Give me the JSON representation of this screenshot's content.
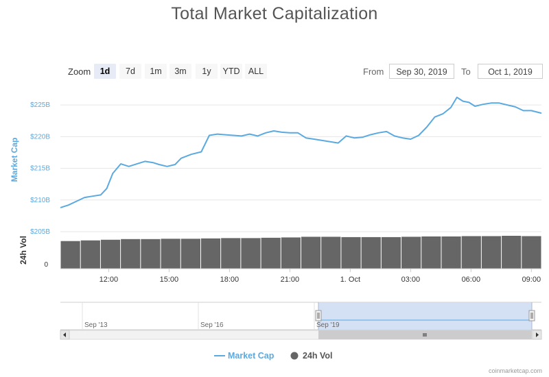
{
  "chart_data": {
    "type": "line",
    "title": "Total Market Capitalization",
    "zoom": {
      "label": "Zoom",
      "buttons": [
        "1d",
        "7d",
        "1m",
        "3m",
        "1y",
        "YTD",
        "ALL"
      ],
      "active": "1d"
    },
    "range": {
      "from_label": "From",
      "from_value": "Sep 30, 2019",
      "to_label": "To",
      "to_value": "Oct 1, 2019"
    },
    "axes": {
      "y_title": "Market Cap",
      "y_unit": "billion USD",
      "y_ticks": [
        "$205B",
        "$210B",
        "$215B",
        "$220B",
        "$225B"
      ],
      "y_tick_values": [
        205,
        210,
        215,
        220,
        225
      ],
      "ylim": [
        205,
        227.5
      ],
      "vol_title": "24h Vol",
      "vol_ticks": [
        "0"
      ],
      "x_tick_labels": [
        "12:00",
        "15:00",
        "18:00",
        "21:00",
        "1. Oct",
        "03:00",
        "06:00",
        "09:00"
      ],
      "x_tick_hours": [
        12,
        15,
        18,
        21,
        24,
        27,
        30,
        33
      ],
      "xlim_hours": [
        9.6,
        33.5
      ],
      "grid": true
    },
    "series": [
      {
        "name": "Market Cap",
        "color": "#5aa9e0",
        "x_hours": [
          9.6,
          10.0,
          10.4,
          10.8,
          11.2,
          11.6,
          11.9,
          12.2,
          12.6,
          13.0,
          13.4,
          13.8,
          14.2,
          14.5,
          14.9,
          15.3,
          15.6,
          16.1,
          16.6,
          17.0,
          17.4,
          17.8,
          18.2,
          18.6,
          19.0,
          19.4,
          19.8,
          20.2,
          20.6,
          21.0,
          21.4,
          21.8,
          22.2,
          22.6,
          23.0,
          23.4,
          23.8,
          24.2,
          24.6,
          25.0,
          25.4,
          25.8,
          26.2,
          26.6,
          27.0,
          27.4,
          27.8,
          28.2,
          28.6,
          29.0,
          29.3,
          29.6,
          29.9,
          30.2,
          30.6,
          31.0,
          31.4,
          31.8,
          32.2,
          32.6,
          33.0,
          33.5
        ],
        "values": [
          208.8,
          209.2,
          209.8,
          210.4,
          210.6,
          210.8,
          211.8,
          214.2,
          215.7,
          215.3,
          215.7,
          216.1,
          215.9,
          215.6,
          215.3,
          215.6,
          216.6,
          217.2,
          217.6,
          220.2,
          220.4,
          220.3,
          220.2,
          220.1,
          220.4,
          220.1,
          220.6,
          220.9,
          220.7,
          220.6,
          220.6,
          219.8,
          219.6,
          219.4,
          219.2,
          219.0,
          220.1,
          219.8,
          219.9,
          220.3,
          220.6,
          220.8,
          220.1,
          219.8,
          219.6,
          220.2,
          221.5,
          223.1,
          223.6,
          224.6,
          226.2,
          225.6,
          225.4,
          224.8,
          225.1,
          225.3,
          225.3,
          225.0,
          224.7,
          224.1,
          224.1,
          223.7
        ]
      },
      {
        "name": "24h Vol",
        "type": "column",
        "color": "#666666",
        "relative_values": [
          0.84,
          0.86,
          0.88,
          0.9,
          0.9,
          0.91,
          0.91,
          0.92,
          0.93,
          0.93,
          0.94,
          0.95,
          0.97,
          0.97,
          0.96,
          0.96,
          0.96,
          0.97,
          0.98,
          0.98,
          0.99,
          0.99,
          1.0,
          0.99
        ]
      }
    ],
    "navigator": {
      "labels": [
        "Sep '13",
        "Sep '16",
        "Sep '19"
      ]
    },
    "legend": [
      "Market Cap",
      "24h Vol"
    ],
    "credits": "coinmarketcap.com"
  }
}
